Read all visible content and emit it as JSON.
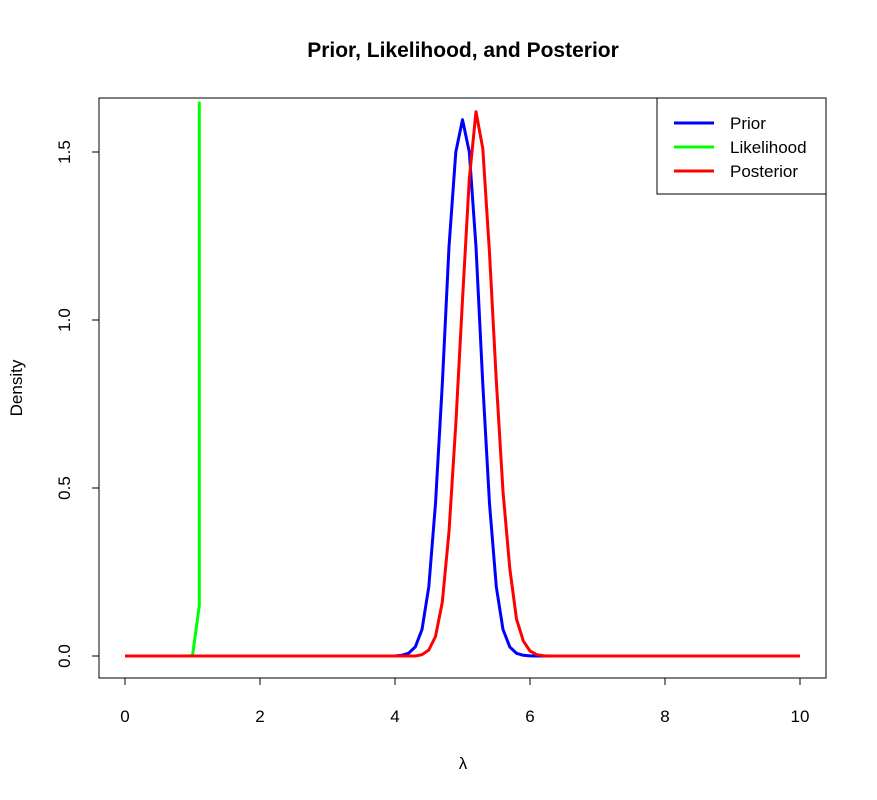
{
  "chart_data": {
    "type": "line",
    "title": "Prior, Likelihood, and Posterior",
    "xlabel": "λ",
    "ylabel": "Density",
    "xlim": [
      0,
      10
    ],
    "ylim": [
      0,
      1.65
    ],
    "x_ticks": [
      "0",
      "2",
      "4",
      "6",
      "8",
      "10"
    ],
    "y_ticks": [
      "0.0",
      "0.5",
      "1.0",
      "1.5"
    ],
    "grid": false,
    "legend_position": "top-right",
    "series": [
      {
        "name": "Prior",
        "color": "#0000ff",
        "x": [
          0,
          4.0,
          4.1,
          4.2,
          4.3,
          4.4,
          4.5,
          4.6,
          4.7,
          4.8,
          4.9,
          5.0,
          5.1,
          5.2,
          5.3,
          5.4,
          5.5,
          5.6,
          5.7,
          5.8,
          5.9,
          6.0,
          6.1,
          10
        ],
        "y": [
          0,
          0,
          0.002,
          0.008,
          0.027,
          0.079,
          0.206,
          0.454,
          0.809,
          1.218,
          1.5,
          1.596,
          1.5,
          1.218,
          0.809,
          0.454,
          0.206,
          0.079,
          0.027,
          0.008,
          0.002,
          0.0004,
          0,
          0
        ]
      },
      {
        "name": "Likelihood",
        "color": "#00ff00",
        "x": [
          0,
          0.9,
          1.0,
          1.1,
          1.1
        ],
        "y": [
          0,
          0,
          0.001,
          0.15,
          1.65
        ]
      },
      {
        "name": "Posterior",
        "color": "#ff0000",
        "x": [
          0,
          4.3,
          4.4,
          4.5,
          4.6,
          4.7,
          4.8,
          4.9,
          5.0,
          5.1,
          5.2,
          5.3,
          5.4,
          5.5,
          5.6,
          5.7,
          5.8,
          5.9,
          6.0,
          6.1,
          6.2,
          6.3,
          10
        ],
        "y": [
          0,
          0,
          0.004,
          0.018,
          0.058,
          0.16,
          0.37,
          0.69,
          1.06,
          1.42,
          1.62,
          1.51,
          1.2,
          0.82,
          0.49,
          0.26,
          0.11,
          0.045,
          0.015,
          0.004,
          0.001,
          0,
          0
        ]
      }
    ]
  }
}
